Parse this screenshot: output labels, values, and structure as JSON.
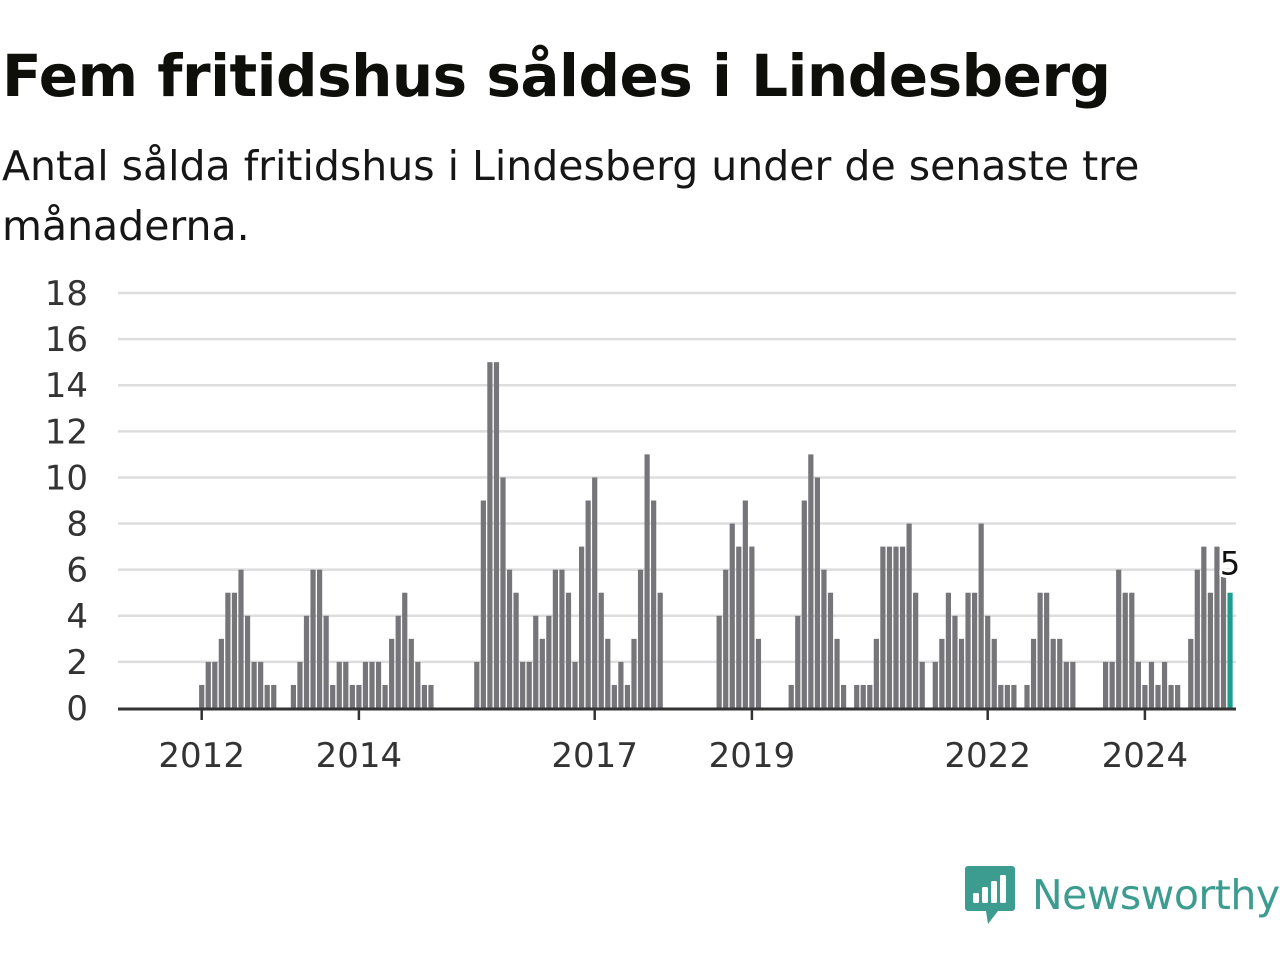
{
  "header": {
    "title": "Fem fritidshus såldes i Lindesberg",
    "subtitle": "Antal sålda fritidshus i Lindesberg under de senaste tre månaderna."
  },
  "brand": {
    "name": "Newsworthy",
    "icon": "newsworthy-logo-icon",
    "color": "#3d9c90"
  },
  "colors": {
    "bar": "#75757a",
    "highlight": "#1a9e90",
    "grid": "#dddddd",
    "axis": "#333333"
  },
  "chart_data": {
    "type": "bar",
    "title": "Fem fritidshus såldes i Lindesberg",
    "subtitle": "Antal sålda fritidshus i Lindesberg under de senaste tre månaderna.",
    "xlabel": "",
    "ylabel": "",
    "ylim": [
      0,
      18
    ],
    "yticks": [
      0,
      2,
      4,
      6,
      8,
      10,
      12,
      14,
      16,
      18
    ],
    "xticks": [
      "2012",
      "2014",
      "2017",
      "2019",
      "2022",
      "2024"
    ],
    "grid": true,
    "legend": "none",
    "highlight_label": "5",
    "series": [
      {
        "name": "",
        "start": "2011-01",
        "frequency": "monthly",
        "values": [
          0,
          0,
          0,
          0,
          0,
          0,
          0,
          0,
          0,
          0,
          0,
          0,
          1,
          2,
          2,
          3,
          5,
          5,
          6,
          4,
          2,
          2,
          1,
          1,
          0,
          0,
          1,
          2,
          4,
          6,
          6,
          4,
          1,
          2,
          2,
          1,
          1,
          2,
          2,
          2,
          1,
          3,
          4,
          5,
          3,
          2,
          1,
          1,
          0,
          0,
          0,
          0,
          0,
          0,
          2,
          9,
          15,
          15,
          10,
          6,
          5,
          2,
          2,
          4,
          3,
          4,
          6,
          6,
          5,
          2,
          7,
          9,
          10,
          5,
          3,
          1,
          2,
          1,
          3,
          6,
          11,
          9,
          5,
          0,
          0,
          0,
          0,
          0,
          0,
          0,
          0,
          4,
          6,
          8,
          7,
          9,
          7,
          3,
          0,
          0,
          0,
          0,
          1,
          4,
          9,
          11,
          10,
          6,
          5,
          3,
          1,
          0,
          1,
          1,
          1,
          3,
          7,
          7,
          7,
          7,
          8,
          5,
          2,
          0,
          2,
          3,
          5,
          4,
          3,
          5,
          5,
          8,
          4,
          3,
          1,
          1,
          1,
          0,
          1,
          3,
          5,
          5,
          3,
          3,
          2,
          2,
          0,
          0,
          0,
          0,
          2,
          2,
          6,
          5,
          5,
          2,
          1,
          2,
          1,
          2,
          1,
          1,
          0,
          3,
          6,
          7,
          5,
          7,
          6,
          5
        ]
      }
    ]
  }
}
